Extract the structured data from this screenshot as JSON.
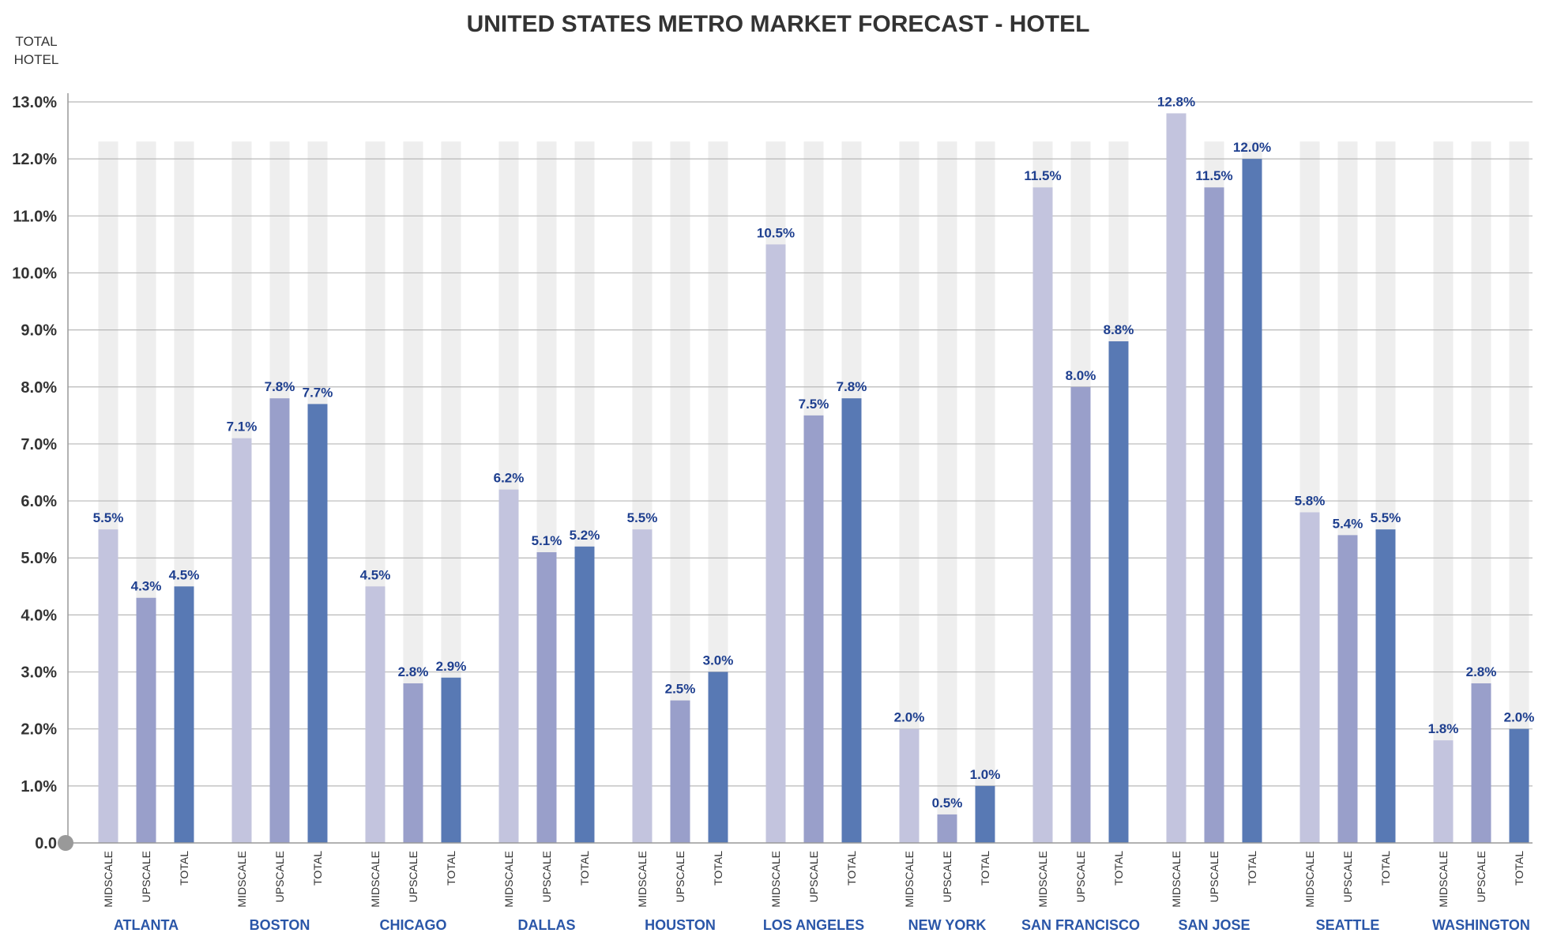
{
  "chart_data": {
    "type": "bar",
    "title": "UNITED STATES METRO MARKET FORECAST - HOTEL",
    "ylabel": [
      "TOTAL",
      "HOTEL"
    ],
    "ylim": [
      0,
      13
    ],
    "yticks": [
      "0.0",
      "1.0%",
      "2.0%",
      "3.0%",
      "4.0%",
      "5.0%",
      "6.0%",
      "7.0%",
      "8.0%",
      "9.0%",
      "10.0%",
      "11.0%",
      "12.0%",
      "13.0%"
    ],
    "grid": true,
    "background_track_max": 12,
    "categories": [
      "ATLANTA",
      "BOSTON",
      "CHICAGO",
      "DALLAS",
      "HOUSTON",
      "LOS ANGELES",
      "NEW YORK",
      "SAN FRANCISCO",
      "SAN JOSE",
      "SEATTLE",
      "WASHINGTON"
    ],
    "series": [
      {
        "name": "MIDSCALE",
        "color": "#c3c4de",
        "values": [
          5.5,
          7.1,
          4.5,
          6.2,
          5.5,
          10.5,
          2.0,
          11.5,
          12.8,
          5.8,
          1.8
        ]
      },
      {
        "name": "UPSCALE",
        "color": "#999fca",
        "values": [
          4.3,
          7.8,
          2.8,
          5.1,
          2.5,
          7.5,
          0.5,
          8.0,
          11.5,
          5.4,
          2.8
        ]
      },
      {
        "name": "TOTAL",
        "color": "#5879b4",
        "values": [
          4.5,
          7.7,
          2.9,
          5.2,
          3.0,
          7.8,
          1.0,
          8.8,
          12.0,
          5.5,
          2.0
        ]
      }
    ],
    "data_labels": [
      [
        "5.5%",
        "7.1%",
        "4.5%",
        "6.2%",
        "5.5%",
        "10.5%",
        "2.0%",
        "11.5%",
        "12.8%",
        "5.8%",
        "1.8%"
      ],
      [
        "4.3%",
        "7.8%",
        "2.8%",
        "5.1%",
        "2.5%",
        "7.5%",
        "0.5%",
        "8.0%",
        "11.5%",
        "5.4%",
        "2.8%"
      ],
      [
        "4.5%",
        "7.7%",
        "2.9%",
        "5.2%",
        "3.0%",
        "7.8%",
        "1.0%",
        "8.8%",
        "12.0%",
        "5.5%",
        "2.0%"
      ]
    ],
    "colors": {
      "grid": "#b8b8b8",
      "axis": "#999999",
      "track": "#eeeeee",
      "data_label": "#1e3f8f",
      "category_label": "#2a56a8",
      "origin_dot": "#999999"
    }
  }
}
